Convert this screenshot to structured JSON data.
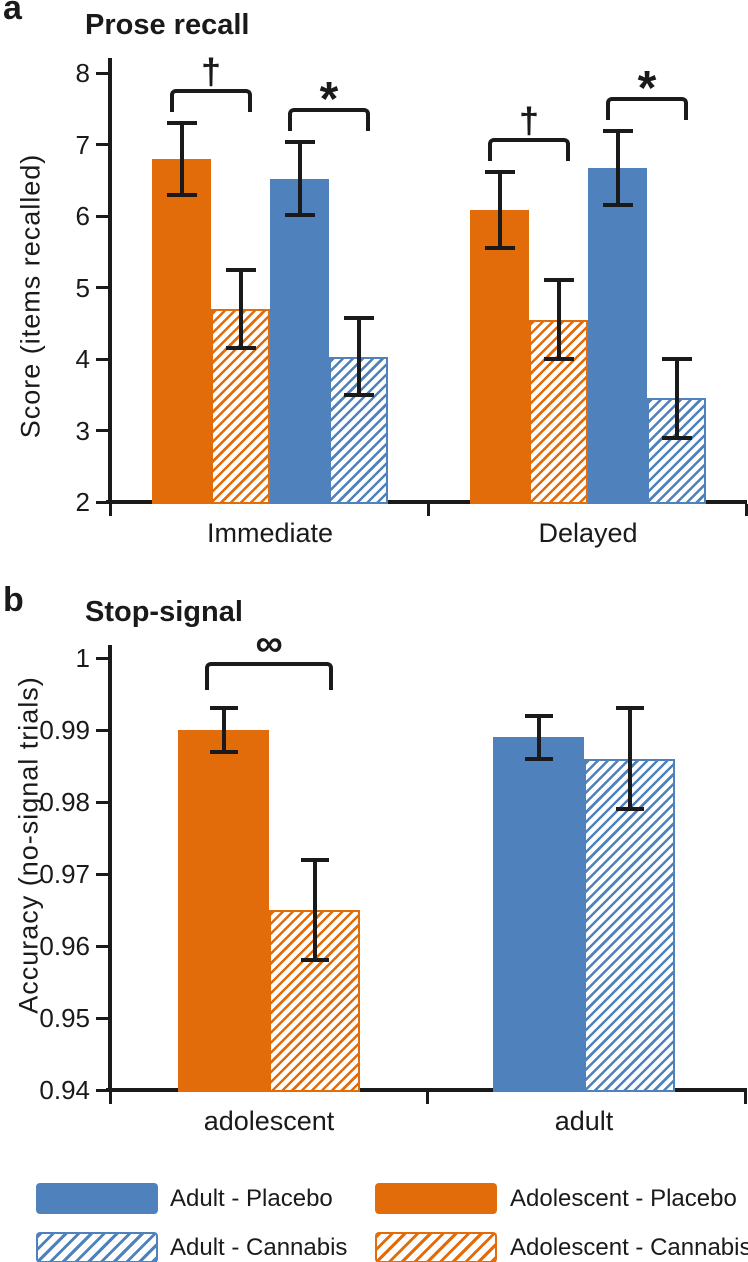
{
  "figure": {
    "background": "#ffffff"
  },
  "colors": {
    "adult_blue": "#4F81BD",
    "adolescent_orange": "#E36C0A",
    "axis": "#1a1a1a",
    "text": "#1a1a1a"
  },
  "legend": {
    "position": "bottom",
    "items": [
      {
        "label": "Adult - Placebo",
        "color": "#4F81BD",
        "hatched": false
      },
      {
        "label": "Adult - Cannabis",
        "color": "#4F81BD",
        "hatched": true
      },
      {
        "label": "Adolescent - Placebo",
        "color": "#E36C0A",
        "hatched": false
      },
      {
        "label": "Adolescent - Cannabis",
        "color": "#E36C0A",
        "hatched": true
      }
    ]
  },
  "chart_data": [
    {
      "type": "bar",
      "panel_label": "a",
      "title": "Prose recall",
      "xlabel": "",
      "ylabel": "Score (items recalled)",
      "ylim": [
        2,
        8
      ],
      "grid": false,
      "yticks": [
        {
          "v": 8,
          "label": "8"
        },
        {
          "v": 7,
          "label": "7"
        },
        {
          "v": 6,
          "label": "6"
        },
        {
          "v": 5,
          "label": "5"
        },
        {
          "v": 4,
          "label": "4"
        },
        {
          "v": 3,
          "label": "3"
        },
        {
          "v": 2,
          "label": "2"
        }
      ],
      "categories": [
        "Immediate",
        "Delayed"
      ],
      "groups": [
        {
          "category": "Immediate",
          "bars": [
            {
              "series": "Adolescent - Placebo",
              "value": 6.8,
              "error": 0.5,
              "color": "#E36C0A",
              "hatched": false
            },
            {
              "series": "Adolescent - Cannabis",
              "value": 4.7,
              "error": 0.55,
              "color": "#E36C0A",
              "hatched": true
            },
            {
              "series": "Adult - Placebo",
              "value": 6.52,
              "error": 0.51,
              "color": "#4F81BD",
              "hatched": false
            },
            {
              "series": "Adult - Cannabis",
              "value": 4.03,
              "error": 0.54,
              "color": "#4F81BD",
              "hatched": true
            }
          ]
        },
        {
          "category": "Delayed",
          "bars": [
            {
              "series": "Adolescent - Placebo",
              "value": 6.08,
              "error": 0.53,
              "color": "#E36C0A",
              "hatched": false
            },
            {
              "series": "Adolescent - Cannabis",
              "value": 4.55,
              "error": 0.55,
              "color": "#E36C0A",
              "hatched": true
            },
            {
              "series": "Adult - Placebo",
              "value": 6.67,
              "error": 0.52,
              "color": "#4F81BD",
              "hatched": false
            },
            {
              "series": "Adult - Cannabis",
              "value": 3.45,
              "error": 0.55,
              "color": "#4F81BD",
              "hatched": true
            }
          ]
        }
      ],
      "significance_brackets": [
        {
          "symbol": "†",
          "category": "Immediate",
          "from_bar": 0,
          "to_bar": 1
        },
        {
          "symbol": "*",
          "category": "Immediate",
          "from_bar": 2,
          "to_bar": 3
        },
        {
          "symbol": "†",
          "category": "Delayed",
          "from_bar": 0,
          "to_bar": 1
        },
        {
          "symbol": "*",
          "category": "Delayed",
          "from_bar": 2,
          "to_bar": 3
        }
      ]
    },
    {
      "type": "bar",
      "panel_label": "b",
      "title": "Stop-signal",
      "xlabel": "",
      "ylabel": "Accuracy (no-signal trials)",
      "ylim": [
        0.94,
        1
      ],
      "grid": false,
      "yticks": [
        {
          "v": 1,
          "label": "1"
        },
        {
          "v": 0.99,
          "label": "0.99"
        },
        {
          "v": 0.98,
          "label": "0.98"
        },
        {
          "v": 0.97,
          "label": "0.97"
        },
        {
          "v": 0.96,
          "label": "0.96"
        },
        {
          "v": 0.95,
          "label": "0.95"
        },
        {
          "v": 0.94,
          "label": "0.94"
        }
      ],
      "categories": [
        "adolescent",
        "adult"
      ],
      "groups": [
        {
          "category": "adolescent",
          "bars": [
            {
              "series": "Adolescent - Placebo",
              "value": 0.99,
              "error": 0.003,
              "color": "#E36C0A",
              "hatched": false
            },
            {
              "series": "Adolescent - Cannabis",
              "value": 0.965,
              "error": 0.007,
              "color": "#E36C0A",
              "hatched": true
            }
          ]
        },
        {
          "category": "adult",
          "bars": [
            {
              "series": "Adult - Placebo",
              "value": 0.989,
              "error": 0.003,
              "color": "#4F81BD",
              "hatched": false
            },
            {
              "series": "Adult - Cannabis",
              "value": 0.986,
              "error": 0.007,
              "color": "#4F81BD",
              "hatched": true
            }
          ]
        }
      ],
      "significance_brackets": [
        {
          "symbol": "∞",
          "category": "adolescent",
          "from_bar": 0,
          "to_bar": 1
        }
      ]
    }
  ]
}
